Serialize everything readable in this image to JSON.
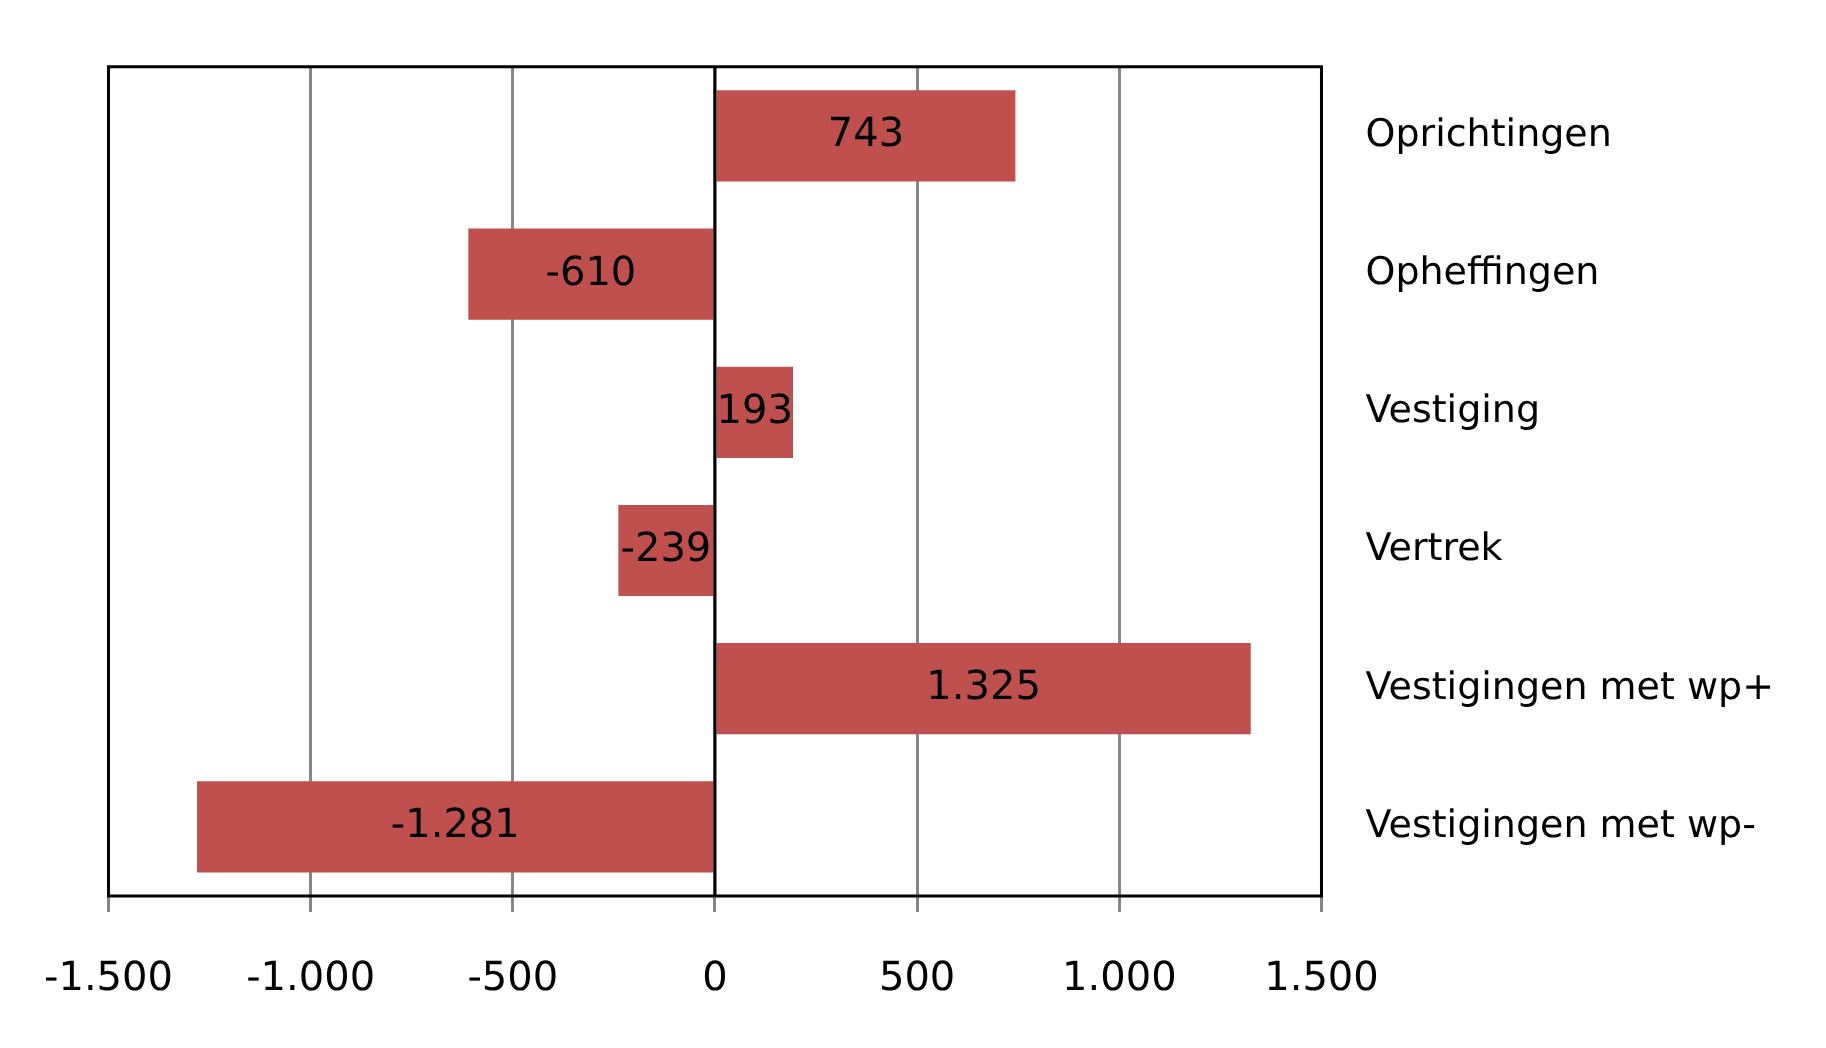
{
  "chart_data": {
    "type": "bar",
    "orientation": "horizontal",
    "categories": [
      "Oprichtingen",
      "Opheffingen",
      "Vestiging",
      "Vertrek",
      "Vestigingen met wp+",
      "Vestigingen met wp-"
    ],
    "values": [
      743,
      -610,
      193,
      -239,
      1325,
      -1281
    ],
    "value_labels": [
      "743",
      "-610",
      "193",
      "-239",
      "1.325",
      "-1.281"
    ],
    "color": "#c0504d",
    "xlim": [
      -1500,
      1500
    ],
    "xticks": [
      {
        "value": -1500,
        "label": "-1.500"
      },
      {
        "value": -1000,
        "label": "-1.000"
      },
      {
        "value": -500,
        "label": "-500"
      },
      {
        "value": 0,
        "label": "0"
      },
      {
        "value": 500,
        "label": "500"
      },
      {
        "value": 1000,
        "label": "1.000"
      },
      {
        "value": 1500,
        "label": "1.500"
      }
    ],
    "grid": "x",
    "legend": false
  }
}
